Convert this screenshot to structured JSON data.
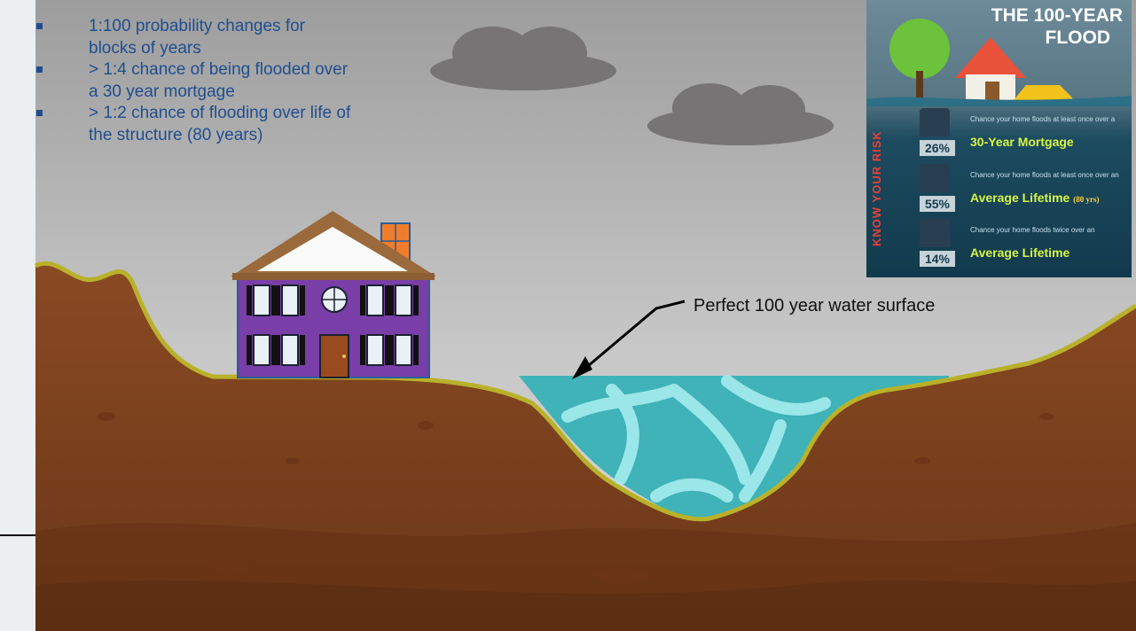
{
  "bullets": [
    "1:100 probability changes for blocks of years",
    "> 1:4 chance of being flooded over a 30 year mortgage",
    "> 1:2 chance of flooding over life of the structure (80 years)"
  ],
  "callout": "Perfect 100 year water surface",
  "infographic": {
    "title_line1": "THE 100-YEAR",
    "title_line2": "FLOOD",
    "side_text": "KNOW YOUR RISK",
    "rows": [
      {
        "percent": "26%",
        "desc": "Chance your home floods at least once over a",
        "big": "30-Year Mortgage",
        "note": ""
      },
      {
        "percent": "55%",
        "desc": "Chance your home floods at least once over an",
        "big": "Average Lifetime",
        "note": "(80 yrs)"
      },
      {
        "percent": "14%",
        "desc": "Chance your home floods twice over an",
        "big": "Average Lifetime",
        "note": ""
      }
    ]
  },
  "colors": {
    "sky": "#c4c4c4",
    "earth": "#7a3f1d",
    "water": "#3fb3b7",
    "bullet_text": "#1f4e8f",
    "house_walls": "#7a3ea8"
  }
}
